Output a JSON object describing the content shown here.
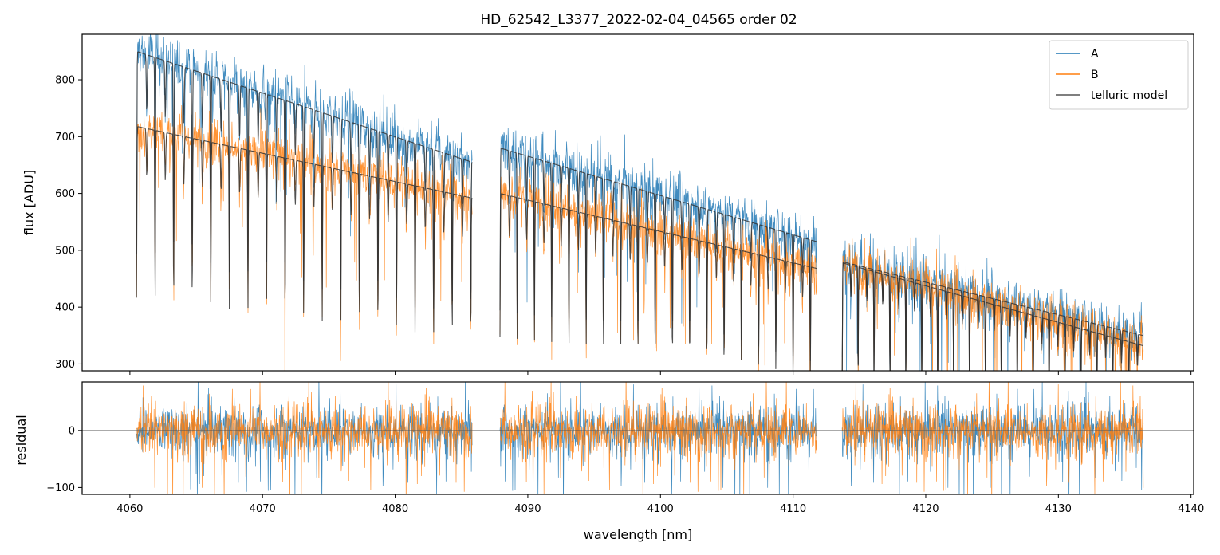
{
  "chart_data": [
    {
      "type": "line",
      "title": "HD_62542_L3377_2022-02-04_04565  order 02",
      "xlabel": "",
      "ylabel": "flux [ADU]",
      "xlim": [
        4056.4,
        4140.2
      ],
      "ylim": [
        288,
        880
      ],
      "x_ticks": [
        4060,
        4070,
        4080,
        4090,
        4100,
        4110,
        4120,
        4130,
        4140
      ],
      "y_ticks": [
        300,
        400,
        500,
        600,
        700,
        800
      ],
      "y_tick_labels": [
        "300",
        "400",
        "500",
        "600",
        "700",
        "800"
      ],
      "segments": [
        {
          "start": 4060.5,
          "end": 4085.8,
          "a_start": 850,
          "a_end": 655,
          "b_start": 718,
          "b_end": 592,
          "line_spacing": 1.4
        },
        {
          "start": 4087.9,
          "end": 4111.8,
          "a_start": 680,
          "a_end": 515,
          "b_start": 600,
          "b_end": 468,
          "line_spacing": 1.3
        },
        {
          "start": 4113.7,
          "end": 4136.4,
          "a_start": 480,
          "a_end": 350,
          "b_start": 478,
          "b_end": 332,
          "line_spacing": 1.2
        }
      ],
      "legend": {
        "position": "top-right",
        "entries": [
          {
            "label": "A",
            "color": "#1f77b4"
          },
          {
            "label": "B",
            "color": "#ff7f0e"
          },
          {
            "label": "telluric model",
            "color": "#555555"
          }
        ]
      },
      "series": [
        {
          "name": "A",
          "color": "#1f77b4",
          "noise": 32
        },
        {
          "name": "B",
          "color": "#ff7f0e",
          "noise": 30
        },
        {
          "name": "telluric model",
          "color": "#333333"
        }
      ],
      "grid": false
    },
    {
      "type": "line",
      "title": "",
      "xlabel": "wavelength [nm]",
      "ylabel": "residual",
      "xlim": [
        4056.4,
        4140.2
      ],
      "ylim": [
        -112,
        85
      ],
      "x_ticks": [
        4060,
        4070,
        4080,
        4090,
        4100,
        4110,
        4120,
        4130,
        4140
      ],
      "x_tick_labels": [
        "4060",
        "4070",
        "4080",
        "4090",
        "4100",
        "4110",
        "4120",
        "4130",
        "4140"
      ],
      "y_ticks": [
        -100,
        0
      ],
      "y_tick_labels": [
        "−100",
        "0"
      ],
      "zero_line": 0,
      "series": [
        {
          "name": "A",
          "color": "#1f77b4",
          "noise": 30
        },
        {
          "name": "B",
          "color": "#ff7f0e",
          "noise": 30
        }
      ],
      "grid": false
    }
  ]
}
